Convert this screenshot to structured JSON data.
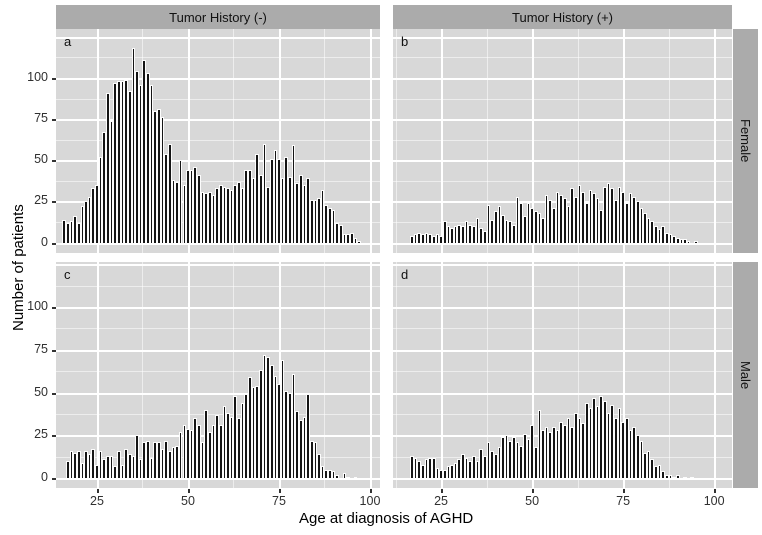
{
  "chart_data": {
    "type": "bar",
    "subtype": "faceted-histogram",
    "title": "",
    "xlabel": "Age at diagnosis of AGHD",
    "ylabel": "Number of patients",
    "facet_cols": [
      "Tumor History (-)",
      "Tumor History (+)"
    ],
    "facet_rows": [
      "Female",
      "Male"
    ],
    "x_ticks": [
      25,
      50,
      75,
      100
    ],
    "y_ticks": [
      0,
      25,
      50,
      75,
      100
    ],
    "grid": "on",
    "legend": "none",
    "bin_width_years": 1,
    "age_start": 16,
    "x_domain_col0": [
      13.75,
      102.75
    ],
    "x_domain_col1": [
      11.8,
      104.9
    ],
    "y_domain_row0": [
      -6.3,
      129.7
    ],
    "y_domain_row1": [
      -5.7,
      126.3
    ],
    "panels": [
      {
        "letter": "a",
        "col": 0,
        "row": 0,
        "facet_col": "Tumor History (-)",
        "facet_row": "Female",
        "counts": [
          14,
          12,
          13,
          16,
          12,
          22,
          25,
          28,
          33,
          35,
          52,
          67,
          91,
          74,
          97,
          98,
          98,
          99,
          92,
          118,
          104,
          96,
          111,
          103,
          96,
          80,
          81,
          76,
          54,
          60,
          38,
          37,
          50,
          35,
          44,
          44,
          46,
          41,
          31,
          30,
          31,
          29,
          33,
          35,
          34,
          33,
          32,
          35,
          37,
          33,
          44,
          44,
          39,
          54,
          41,
          60,
          34,
          51,
          56,
          51,
          39,
          52,
          40,
          59,
          36,
          41,
          35,
          39,
          26,
          26,
          27,
          32,
          23,
          21,
          20,
          12,
          11,
          5,
          5,
          6,
          3,
          1
        ]
      },
      {
        "letter": "b",
        "col": 1,
        "row": 0,
        "facet_col": "Tumor History (+)",
        "facet_row": "Female",
        "counts": [
          0,
          4,
          5,
          6,
          5,
          6,
          5,
          4,
          5,
          4,
          13,
          10,
          9,
          10,
          11,
          10,
          13,
          11,
          10,
          15,
          9,
          7,
          23,
          14,
          19,
          22,
          17,
          14,
          13,
          11,
          28,
          24,
          16,
          24,
          21,
          19,
          18,
          15,
          29,
          26,
          21,
          31,
          29,
          27,
          22,
          33,
          28,
          35,
          31,
          24,
          32,
          30,
          27,
          20,
          34,
          36,
          33,
          26,
          34,
          31,
          24,
          30,
          28,
          25,
          21,
          18,
          15,
          13,
          10,
          8,
          10,
          6,
          5,
          4,
          3,
          2,
          2,
          1,
          0,
          1,
          0,
          0
        ]
      },
      {
        "letter": "c",
        "col": 0,
        "row": 1,
        "facet_col": "Tumor History (-)",
        "facet_row": "Male",
        "counts": [
          0,
          10,
          16,
          15,
          16,
          9,
          16,
          14,
          17,
          8,
          16,
          11,
          13,
          13,
          7,
          16,
          8,
          17,
          14,
          13,
          25,
          11,
          21,
          22,
          12,
          21,
          21,
          17,
          22,
          16,
          18,
          19,
          27,
          31,
          29,
          28,
          35,
          31,
          21,
          40,
          27,
          31,
          37,
          31,
          42,
          38,
          36,
          48,
          35,
          44,
          49,
          59,
          53,
          54,
          63,
          72,
          71,
          66,
          60,
          55,
          69,
          51,
          50,
          61,
          39,
          34,
          36,
          49,
          22,
          21,
          14,
          7,
          5,
          5,
          4,
          2,
          0,
          3,
          1,
          0,
          1,
          0
        ]
      },
      {
        "letter": "d",
        "col": 1,
        "row": 1,
        "facet_col": "Tumor History (+)",
        "facet_row": "Male",
        "counts": [
          0,
          13,
          12,
          10,
          8,
          11,
          12,
          12,
          6,
          5,
          5,
          7,
          8,
          9,
          11,
          14,
          12,
          10,
          13,
          10,
          17,
          13,
          21,
          16,
          14,
          18,
          24,
          25,
          22,
          24,
          21,
          19,
          26,
          23,
          31,
          18,
          40,
          28,
          30,
          27,
          30,
          28,
          33,
          31,
          35,
          30,
          38,
          35,
          32,
          44,
          41,
          47,
          42,
          48,
          45,
          38,
          43,
          35,
          41,
          33,
          35,
          28,
          30,
          25,
          22,
          15,
          16,
          11,
          7,
          8,
          4,
          2,
          2,
          1,
          2,
          0,
          1,
          0,
          1,
          0,
          0,
          0
        ]
      }
    ],
    "colors": {
      "bar": "#151515",
      "bar_outline": "#fcfcfc",
      "panel_bg": "#d8d8d8",
      "strip_bg": "#ababab",
      "grid": "#ffffff",
      "tick_text": "#303030",
      "title_text": "#000000",
      "background": "#ffffff"
    }
  }
}
